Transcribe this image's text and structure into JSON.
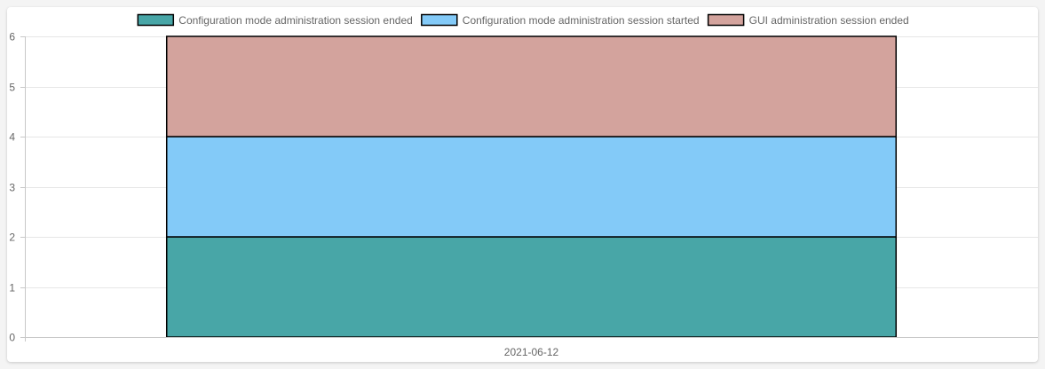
{
  "chart_data": {
    "type": "bar",
    "stacked": true,
    "categories": [
      "2021-06-12"
    ],
    "series": [
      {
        "name": "Configuration mode administration session ended",
        "values": [
          2
        ],
        "color": "#48a6a7"
      },
      {
        "name": "Configuration mode administration session started",
        "values": [
          2
        ],
        "color": "#83caf8"
      },
      {
        "name": "GUI administration session ended",
        "values": [
          2
        ],
        "color": "#d3a39d"
      }
    ],
    "ylim": [
      0,
      6
    ],
    "yticks": [
      "0",
      "1",
      "2",
      "3",
      "4",
      "5",
      "6"
    ],
    "legend_position": "top",
    "grid": true,
    "colors": {
      "grid": "#e6e6e6",
      "axis": "#c8c8c8",
      "bar_border": "#000000"
    }
  }
}
